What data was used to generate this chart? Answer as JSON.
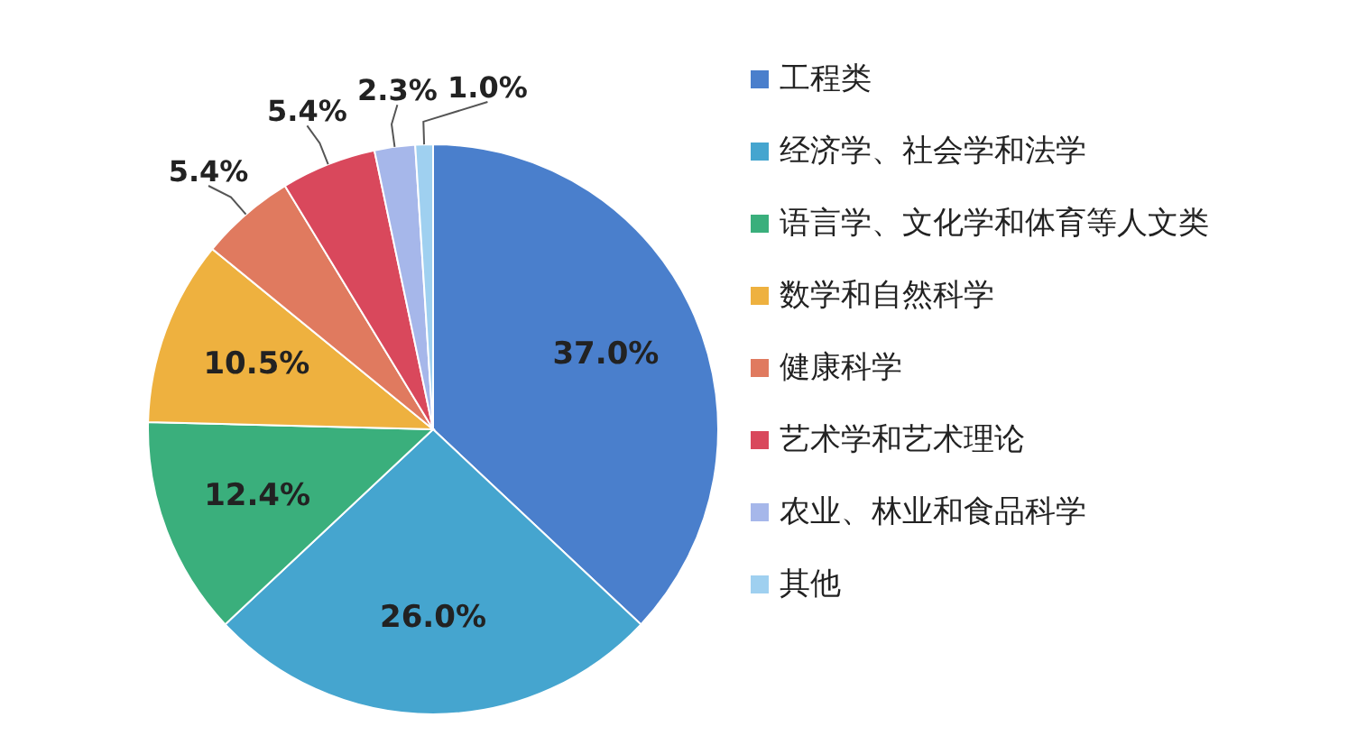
{
  "chart_data": {
    "type": "pie",
    "categories": [
      "工程类",
      "经济学、社会学和法学",
      "语言学、文化学和体育等人文类",
      "数学和自然科学",
      "健康科学",
      "艺术学和艺术理论",
      "农业、林业和食品科学",
      "其他"
    ],
    "values": [
      37.0,
      26.0,
      12.4,
      10.5,
      5.4,
      5.4,
      2.3,
      1.0
    ],
    "colors": [
      "#4a7fcc",
      "#45a5cf",
      "#3aaf7c",
      "#eeb13f",
      "#e07a5f",
      "#d9485c",
      "#a6b7ea",
      "#9fd0f0"
    ],
    "value_labels": [
      "37.0%",
      "26.0%",
      "12.4%",
      "10.5%",
      "5.4%",
      "5.4%",
      "2.3%",
      "1.0%"
    ],
    "legend": "right"
  }
}
